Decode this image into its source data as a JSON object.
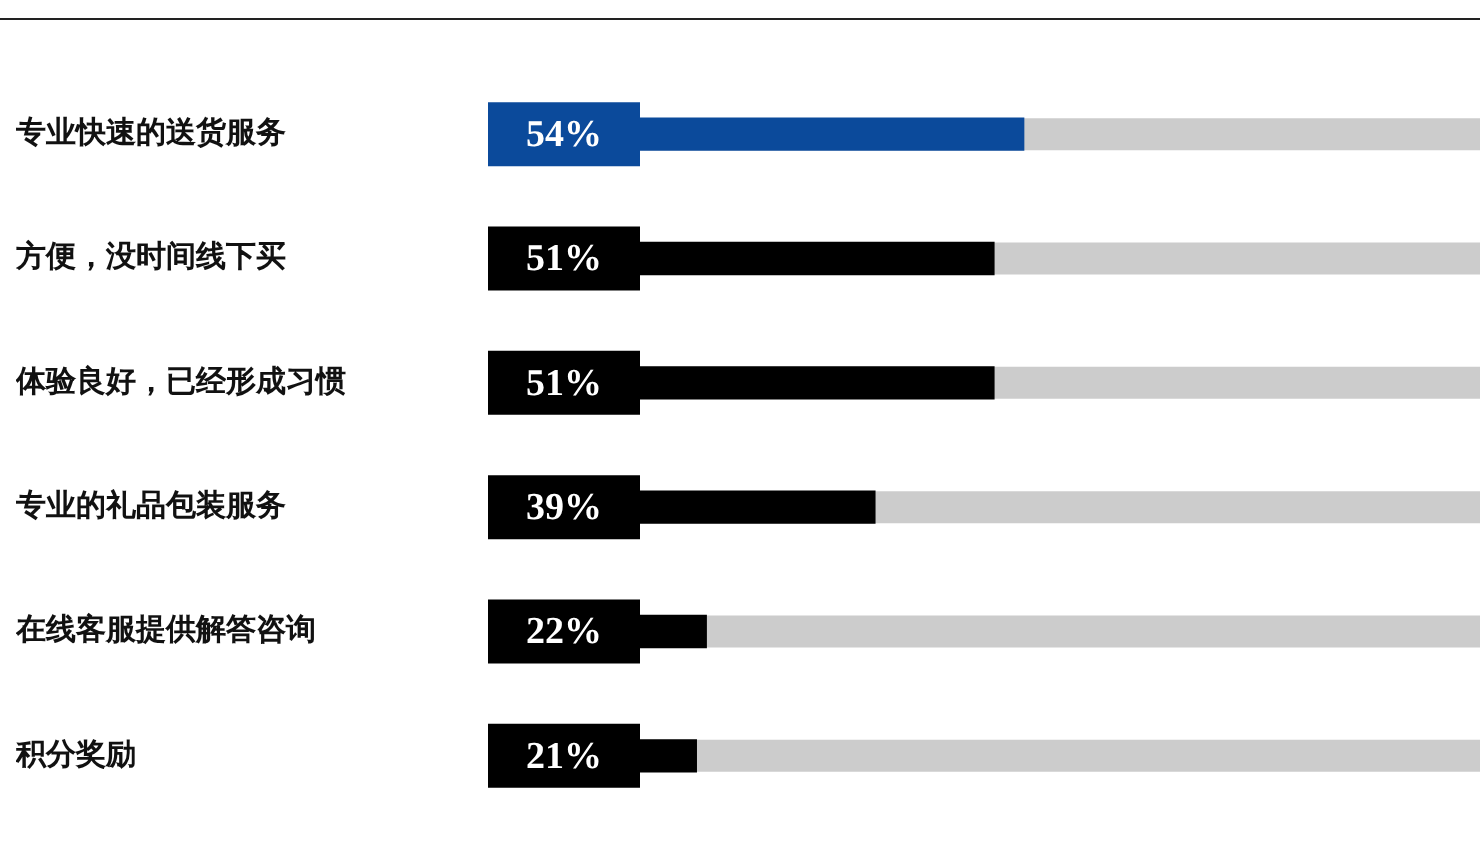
{
  "chart_data": {
    "type": "bar",
    "orientation": "horizontal",
    "categories": [
      "专业快速的送货服务",
      "方便，没时间线下买",
      "体验良好，已经形成习惯",
      "专业的礼品包装服务",
      "在线客服提供解答咨询",
      "积分奖励"
    ],
    "values": [
      54,
      51,
      51,
      39,
      22,
      21
    ],
    "colors": [
      "#0b4a9b",
      "#000000",
      "#000000",
      "#000000",
      "#000000",
      "#000000"
    ],
    "value_labels": [
      "54%",
      "51%",
      "51%",
      "39%",
      "22%",
      "21%"
    ],
    "xlim": [
      0,
      100
    ],
    "tick_labels": "y",
    "legend": false
  }
}
